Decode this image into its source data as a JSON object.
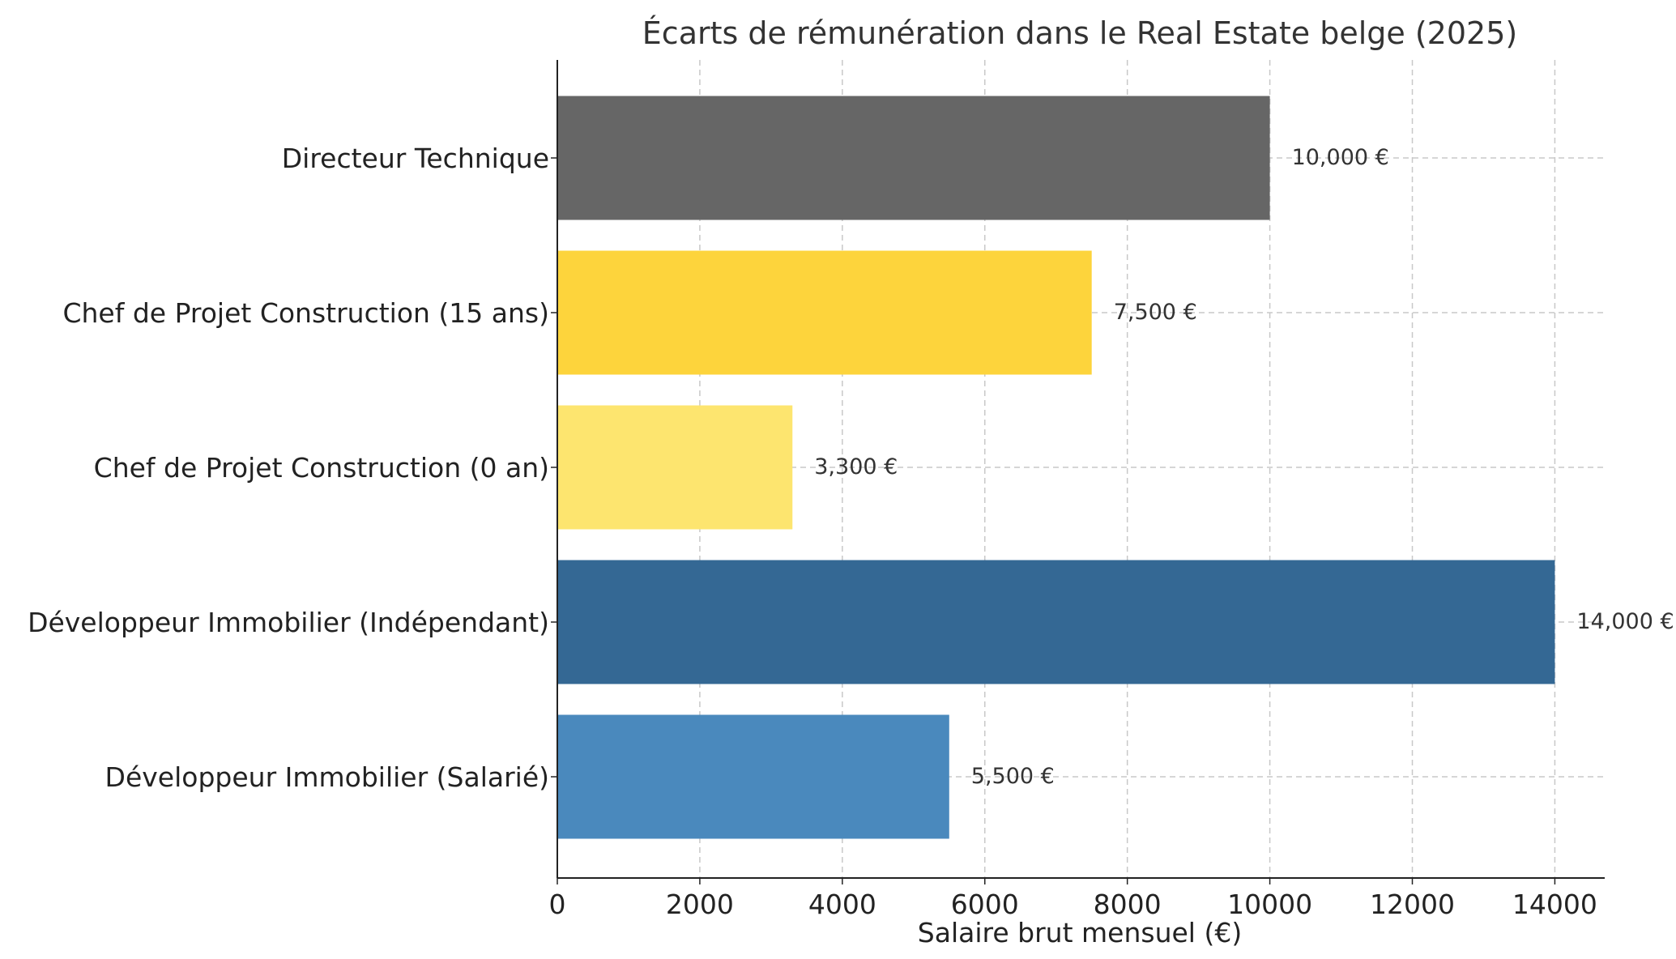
{
  "chart_data": {
    "type": "bar",
    "orientation": "horizontal",
    "title": "Écarts de rémunération dans le Real Estate belge (2025)",
    "xlabel": "Salaire brut mensuel (€)",
    "ylabel": "",
    "xlim": [
      0,
      14700
    ],
    "xticks": [
      0,
      2000,
      4000,
      6000,
      8000,
      10000,
      12000,
      14000
    ],
    "xtick_labels": [
      "0",
      "2000",
      "4000",
      "6000",
      "8000",
      "10000",
      "12000",
      "14000"
    ],
    "grid": true,
    "categories": [
      "Directeur Technique",
      "Chef de Projet Construction (15 ans)",
      "Chef de Projet Construction (0 an)",
      "Développeur Immobilier (Indépendant)",
      "Développeur Immobilier (Salarié)"
    ],
    "values": [
      10000,
      7500,
      3300,
      14000,
      5500
    ],
    "value_labels": [
      "10,000 €",
      "7,500 €",
      "3,300 €",
      "14,000 €",
      "5,500 €"
    ],
    "colors": [
      "#666666",
      "#fdd43c",
      "#fde56f",
      "#346894",
      "#4a89bd"
    ]
  }
}
